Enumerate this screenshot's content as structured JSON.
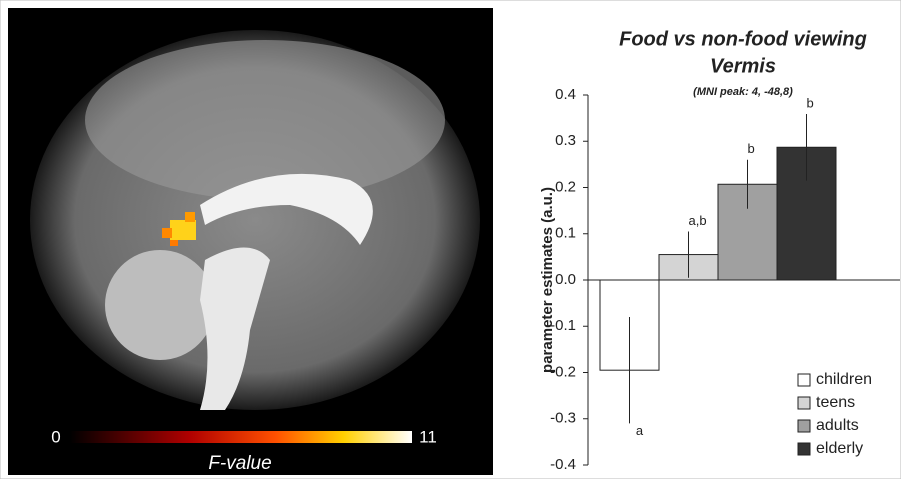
{
  "chart_data": {
    "type": "bar",
    "title": "Food vs non-food viewing",
    "subtitle": "Vermis",
    "annotation": "(MNI peak: 4, -48,8)",
    "ylabel": "parameter estimates (a.u.)",
    "categories": [
      "children",
      "teens",
      "adults",
      "elderly"
    ],
    "values": [
      -0.195,
      0.055,
      0.207,
      0.287
    ],
    "errors": [
      0.115,
      0.05,
      0.053,
      0.072
    ],
    "letters": [
      "a",
      "a,b",
      "b",
      "b"
    ],
    "colors": [
      "#ffffff",
      "#d4d4d4",
      "#a0a0a0",
      "#333333"
    ],
    "ylim": [
      -0.4,
      0.4
    ],
    "yticks": [
      -0.4,
      -0.3,
      -0.2,
      -0.1,
      {
        "value": 0,
        "label": "0.0"
      },
      0.1,
      0.2,
      0.3,
      0.4
    ],
    "legend": "bottom-right"
  },
  "colorbar": {
    "min": 0,
    "max": 11,
    "label": "F-value"
  }
}
